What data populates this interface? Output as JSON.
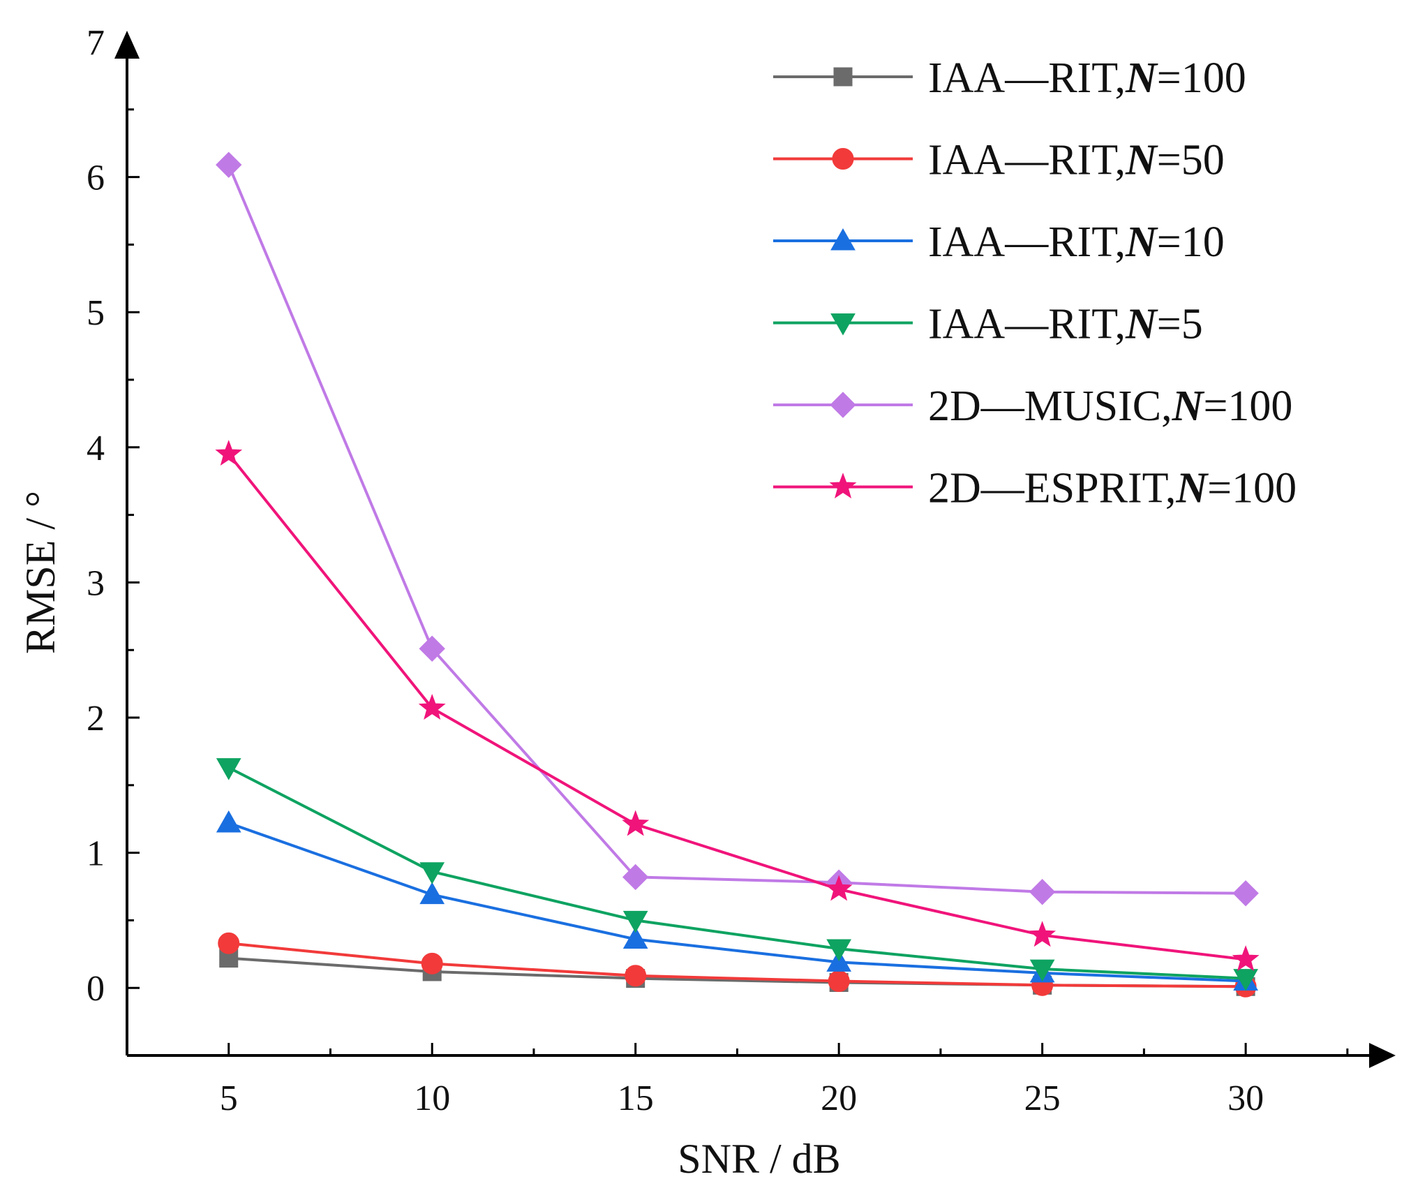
{
  "chart_data": {
    "type": "line",
    "title": "",
    "xlabel": "SNR / dB",
    "ylabel": "RMSE / °",
    "x": [
      5,
      10,
      15,
      20,
      25,
      30
    ],
    "x_ticks": [
      "5",
      "10",
      "15",
      "20",
      "25",
      "30"
    ],
    "y_ticks": [
      "0",
      "1",
      "2",
      "3",
      "4",
      "5",
      "6",
      "7"
    ],
    "xlim": [
      2.5,
      33
    ],
    "ylim": [
      -0.5,
      7
    ],
    "grid": false,
    "legend_position": "top-right",
    "series": [
      {
        "name": "IAA—RIT,N=100",
        "label_pre": "IAA—RIT,",
        "label_n": "N",
        "label_post": "=100",
        "marker": "square",
        "color": "#6b6b6b",
        "values": [
          0.22,
          0.12,
          0.07,
          0.04,
          0.02,
          0.01
        ]
      },
      {
        "name": "IAA—RIT,N=50",
        "label_pre": "IAA—RIT,",
        "label_n": "N",
        "label_post": "=50",
        "marker": "circle",
        "color": "#f23a3a",
        "values": [
          0.33,
          0.18,
          0.09,
          0.05,
          0.02,
          0.01
        ]
      },
      {
        "name": "IAA—RIT,N=10",
        "label_pre": "IAA—RIT,",
        "label_n": "N",
        "label_post": "=10",
        "marker": "triangle-up",
        "color": "#1a6fe0",
        "values": [
          1.22,
          0.69,
          0.36,
          0.19,
          0.11,
          0.05
        ]
      },
      {
        "name": "IAA—RIT,N=5",
        "label_pre": "IAA—RIT,",
        "label_n": "N",
        "label_post": "=5",
        "marker": "triangle-down",
        "color": "#0ea361",
        "values": [
          1.63,
          0.86,
          0.5,
          0.29,
          0.14,
          0.07
        ]
      },
      {
        "name": "2D—MUSIC,N=100",
        "label_pre": "2D—MUSIC,",
        "label_n": "N",
        "label_post": "=100",
        "marker": "diamond",
        "color": "#c07ae6",
        "values": [
          6.09,
          2.51,
          0.82,
          0.78,
          0.71,
          0.7
        ]
      },
      {
        "name": "2D—ESPRIT,N=100",
        "label_pre": "2D—ESPRIT,",
        "label_n": "N",
        "label_post": "=100",
        "marker": "star",
        "color": "#f0147a",
        "values": [
          3.95,
          2.07,
          1.21,
          0.73,
          0.39,
          0.21
        ]
      }
    ]
  }
}
